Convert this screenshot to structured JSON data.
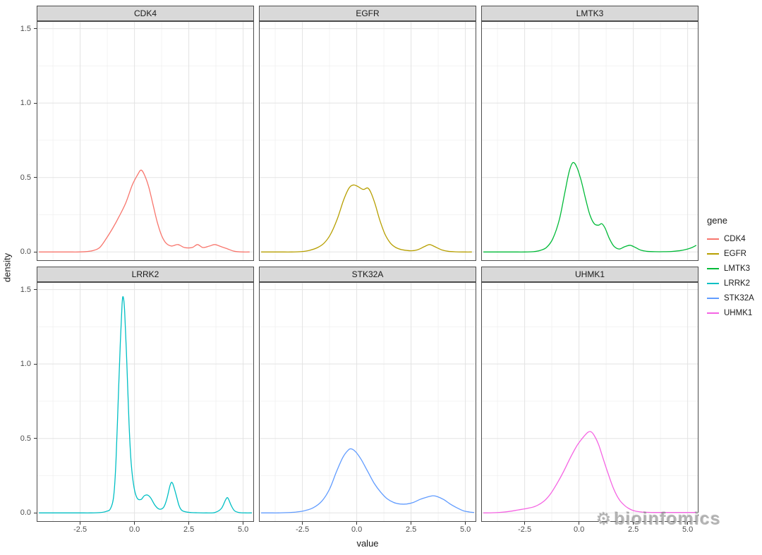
{
  "figure": {
    "watermark_text": "bioinfomics"
  },
  "chart_data": {
    "type": "line",
    "subtype": "faceted-density",
    "title": "",
    "xlabel": "value",
    "ylabel": "density",
    "legend_title": "gene",
    "legend_position": "right",
    "facet_layout": {
      "rows": 2,
      "cols": 3
    },
    "grid": "on",
    "xlim": [
      -4.5,
      5.5
    ],
    "ylim": [
      -0.06,
      1.55
    ],
    "x_ticks": [
      -2.5,
      0.0,
      2.5,
      5.0
    ],
    "x_tick_labels": [
      "-2.5",
      "0.0",
      "2.5",
      "5.0"
    ],
    "x_minor": [
      -3.75,
      -1.25,
      1.25,
      3.75
    ],
    "y_ticks": [
      0.0,
      0.5,
      1.0,
      1.5
    ],
    "y_tick_labels": [
      "0.0",
      "0.5",
      "1.0",
      "1.5"
    ],
    "y_minor": [
      0.25,
      0.75,
      1.25
    ],
    "series": [
      {
        "name": "CDK4",
        "color": "#F8766D",
        "points": [
          [
            -4.4,
            0
          ],
          [
            -4.0,
            0
          ],
          [
            -3.5,
            0
          ],
          [
            -3.0,
            0
          ],
          [
            -2.6,
            0
          ],
          [
            -2.2,
            0.003
          ],
          [
            -1.9,
            0.01
          ],
          [
            -1.6,
            0.03
          ],
          [
            -1.3,
            0.09
          ],
          [
            -1.0,
            0.16
          ],
          [
            -0.7,
            0.24
          ],
          [
            -0.4,
            0.33
          ],
          [
            -0.1,
            0.45
          ],
          [
            0.15,
            0.52
          ],
          [
            0.3,
            0.55
          ],
          [
            0.45,
            0.52
          ],
          [
            0.65,
            0.44
          ],
          [
            0.85,
            0.32
          ],
          [
            1.05,
            0.2
          ],
          [
            1.25,
            0.11
          ],
          [
            1.45,
            0.06
          ],
          [
            1.7,
            0.04
          ],
          [
            2.0,
            0.05
          ],
          [
            2.3,
            0.03
          ],
          [
            2.65,
            0.03
          ],
          [
            2.9,
            0.05
          ],
          [
            3.15,
            0.03
          ],
          [
            3.45,
            0.04
          ],
          [
            3.7,
            0.05
          ],
          [
            4.0,
            0.035
          ],
          [
            4.3,
            0.02
          ],
          [
            4.6,
            0.005
          ],
          [
            5.0,
            0
          ],
          [
            5.3,
            0
          ]
        ]
      },
      {
        "name": "EGFR",
        "color": "#B79F00",
        "points": [
          [
            -4.4,
            0
          ],
          [
            -4.0,
            0
          ],
          [
            -3.5,
            0
          ],
          [
            -3.0,
            0
          ],
          [
            -2.6,
            0.002
          ],
          [
            -2.2,
            0.01
          ],
          [
            -1.8,
            0.03
          ],
          [
            -1.5,
            0.06
          ],
          [
            -1.2,
            0.12
          ],
          [
            -0.9,
            0.22
          ],
          [
            -0.6,
            0.35
          ],
          [
            -0.35,
            0.43
          ],
          [
            -0.15,
            0.45
          ],
          [
            0.05,
            0.44
          ],
          [
            0.3,
            0.42
          ],
          [
            0.5,
            0.43
          ],
          [
            0.65,
            0.4
          ],
          [
            0.85,
            0.32
          ],
          [
            1.05,
            0.22
          ],
          [
            1.3,
            0.12
          ],
          [
            1.55,
            0.06
          ],
          [
            1.8,
            0.03
          ],
          [
            2.1,
            0.015
          ],
          [
            2.5,
            0.008
          ],
          [
            2.8,
            0.015
          ],
          [
            3.1,
            0.035
          ],
          [
            3.35,
            0.05
          ],
          [
            3.6,
            0.035
          ],
          [
            3.9,
            0.015
          ],
          [
            4.2,
            0.005
          ],
          [
            4.6,
            0.001
          ],
          [
            5.0,
            0
          ],
          [
            5.3,
            0
          ]
        ]
      },
      {
        "name": "LMTK3",
        "color": "#00BA38",
        "points": [
          [
            -4.4,
            0
          ],
          [
            -4.0,
            0
          ],
          [
            -3.5,
            0
          ],
          [
            -3.0,
            0
          ],
          [
            -2.5,
            0
          ],
          [
            -2.1,
            0.002
          ],
          [
            -1.8,
            0.01
          ],
          [
            -1.5,
            0.03
          ],
          [
            -1.2,
            0.09
          ],
          [
            -0.9,
            0.22
          ],
          [
            -0.65,
            0.4
          ],
          [
            -0.45,
            0.54
          ],
          [
            -0.28,
            0.6
          ],
          [
            -0.1,
            0.57
          ],
          [
            0.1,
            0.48
          ],
          [
            0.3,
            0.36
          ],
          [
            0.5,
            0.25
          ],
          [
            0.7,
            0.19
          ],
          [
            0.9,
            0.18
          ],
          [
            1.05,
            0.19
          ],
          [
            1.2,
            0.16
          ],
          [
            1.4,
            0.09
          ],
          [
            1.6,
            0.04
          ],
          [
            1.85,
            0.02
          ],
          [
            2.1,
            0.035
          ],
          [
            2.35,
            0.045
          ],
          [
            2.6,
            0.03
          ],
          [
            2.85,
            0.012
          ],
          [
            3.1,
            0.005
          ],
          [
            3.5,
            0.002
          ],
          [
            3.9,
            0.002
          ],
          [
            4.3,
            0.004
          ],
          [
            4.7,
            0.01
          ],
          [
            5.0,
            0.02
          ],
          [
            5.2,
            0.03
          ],
          [
            5.4,
            0.045
          ]
        ]
      },
      {
        "name": "LRRK2",
        "color": "#00BFC4",
        "points": [
          [
            -4.4,
            0
          ],
          [
            -4.0,
            0
          ],
          [
            -3.5,
            0
          ],
          [
            -3.0,
            0
          ],
          [
            -2.5,
            0
          ],
          [
            -2.0,
            0
          ],
          [
            -1.6,
            0.002
          ],
          [
            -1.3,
            0.01
          ],
          [
            -1.1,
            0.03
          ],
          [
            -0.95,
            0.12
          ],
          [
            -0.85,
            0.35
          ],
          [
            -0.75,
            0.75
          ],
          [
            -0.65,
            1.15
          ],
          [
            -0.57,
            1.4
          ],
          [
            -0.52,
            1.45
          ],
          [
            -0.45,
            1.35
          ],
          [
            -0.35,
            1.0
          ],
          [
            -0.25,
            0.6
          ],
          [
            -0.15,
            0.33
          ],
          [
            -0.02,
            0.17
          ],
          [
            0.12,
            0.1
          ],
          [
            0.3,
            0.09
          ],
          [
            0.45,
            0.115
          ],
          [
            0.6,
            0.12
          ],
          [
            0.75,
            0.1
          ],
          [
            0.95,
            0.05
          ],
          [
            1.15,
            0.025
          ],
          [
            1.35,
            0.04
          ],
          [
            1.5,
            0.1
          ],
          [
            1.65,
            0.19
          ],
          [
            1.75,
            0.2
          ],
          [
            1.9,
            0.13
          ],
          [
            2.05,
            0.05
          ],
          [
            2.2,
            0.015
          ],
          [
            2.5,
            0.004
          ],
          [
            2.9,
            0.001
          ],
          [
            3.3,
            0
          ],
          [
            3.7,
            0.003
          ],
          [
            4.0,
            0.03
          ],
          [
            4.2,
            0.09
          ],
          [
            4.3,
            0.1
          ],
          [
            4.45,
            0.05
          ],
          [
            4.6,
            0.015
          ],
          [
            4.8,
            0.003
          ],
          [
            5.1,
            0
          ],
          [
            5.4,
            0
          ]
        ]
      },
      {
        "name": "STK32A",
        "color": "#619CFF",
        "points": [
          [
            -4.4,
            0
          ],
          [
            -4.0,
            0
          ],
          [
            -3.6,
            0
          ],
          [
            -3.2,
            0.002
          ],
          [
            -2.8,
            0.006
          ],
          [
            -2.4,
            0.015
          ],
          [
            -2.0,
            0.035
          ],
          [
            -1.6,
            0.08
          ],
          [
            -1.25,
            0.16
          ],
          [
            -0.95,
            0.27
          ],
          [
            -0.65,
            0.37
          ],
          [
            -0.4,
            0.42
          ],
          [
            -0.25,
            0.43
          ],
          [
            -0.05,
            0.41
          ],
          [
            0.2,
            0.36
          ],
          [
            0.5,
            0.28
          ],
          [
            0.8,
            0.2
          ],
          [
            1.1,
            0.14
          ],
          [
            1.4,
            0.095
          ],
          [
            1.7,
            0.07
          ],
          [
            2.0,
            0.06
          ],
          [
            2.3,
            0.06
          ],
          [
            2.6,
            0.07
          ],
          [
            2.9,
            0.09
          ],
          [
            3.2,
            0.105
          ],
          [
            3.5,
            0.115
          ],
          [
            3.7,
            0.11
          ],
          [
            4.0,
            0.09
          ],
          [
            4.3,
            0.06
          ],
          [
            4.6,
            0.035
          ],
          [
            4.9,
            0.015
          ],
          [
            5.2,
            0.006
          ],
          [
            5.4,
            0.003
          ]
        ]
      },
      {
        "name": "UHMK1",
        "color": "#F564E3",
        "points": [
          [
            -4.4,
            0
          ],
          [
            -4.0,
            0.001
          ],
          [
            -3.6,
            0.004
          ],
          [
            -3.2,
            0.01
          ],
          [
            -2.8,
            0.02
          ],
          [
            -2.4,
            0.03
          ],
          [
            -2.0,
            0.045
          ],
          [
            -1.6,
            0.08
          ],
          [
            -1.3,
            0.13
          ],
          [
            -1.0,
            0.2
          ],
          [
            -0.7,
            0.28
          ],
          [
            -0.4,
            0.37
          ],
          [
            -0.1,
            0.45
          ],
          [
            0.15,
            0.5
          ],
          [
            0.4,
            0.54
          ],
          [
            0.55,
            0.545
          ],
          [
            0.7,
            0.52
          ],
          [
            0.9,
            0.46
          ],
          [
            1.1,
            0.37
          ],
          [
            1.35,
            0.26
          ],
          [
            1.6,
            0.16
          ],
          [
            1.85,
            0.09
          ],
          [
            2.1,
            0.05
          ],
          [
            2.35,
            0.025
          ],
          [
            2.6,
            0.012
          ],
          [
            2.9,
            0.006
          ],
          [
            3.2,
            0.004
          ],
          [
            3.6,
            0.003
          ],
          [
            4.0,
            0.003
          ],
          [
            4.4,
            0.003
          ],
          [
            4.8,
            0.003
          ],
          [
            5.2,
            0.003
          ],
          [
            5.4,
            0.003
          ]
        ]
      }
    ]
  }
}
